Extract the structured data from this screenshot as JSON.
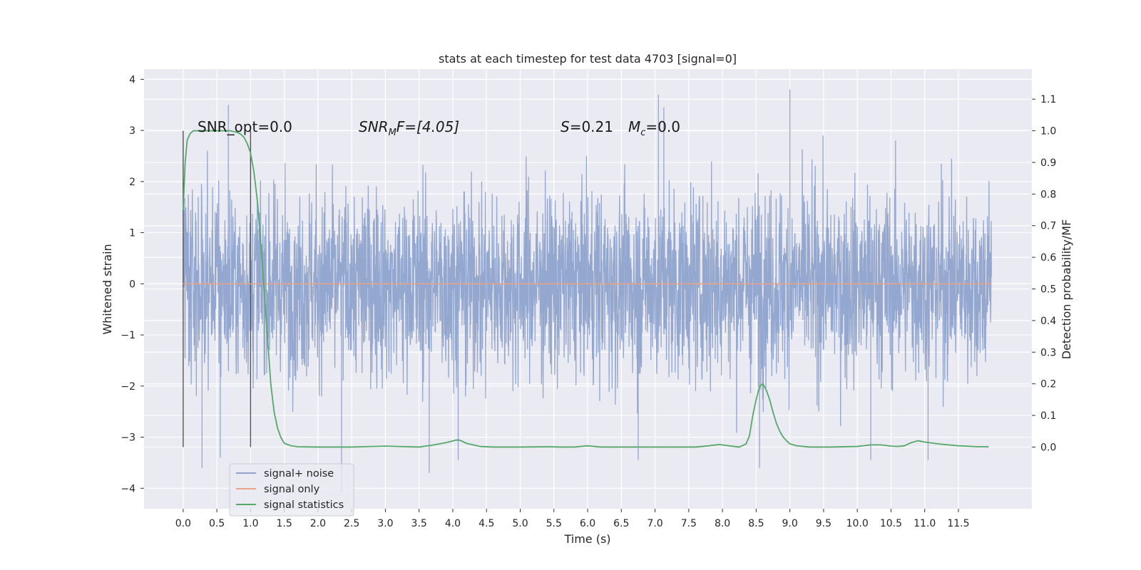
{
  "chart_data": {
    "type": "line",
    "title": "stats at each timestep for test data 4703 [signal=0]",
    "xlabel": "Time (s)",
    "ylabel": "Whitened strain",
    "y2label": "Detection probability/MF",
    "xlim": [
      -0.58,
      12.59
    ],
    "ylim": [
      -4.4,
      4.2
    ],
    "y2lim": [
      -0.195,
      1.195
    ],
    "x_ticks": [
      "0.0",
      "0.5",
      "1.0",
      "1.5",
      "2.0",
      "2.5",
      "3.0",
      "3.5",
      "4.0",
      "4.5",
      "5.0",
      "5.5",
      "6.0",
      "6.5",
      "7.0",
      "7.5",
      "8.0",
      "8.5",
      "9.0",
      "9.5",
      "10.0",
      "10.5",
      "11.0",
      "11.5"
    ],
    "y_ticks": [
      "4",
      "3",
      "2",
      "1",
      "0",
      "−1",
      "−2",
      "−3",
      "−4"
    ],
    "y2_ticks": [
      "1.1",
      "1.0",
      "0.9",
      "0.8",
      "0.7",
      "0.6",
      "0.5",
      "0.4",
      "0.3",
      "0.2",
      "0.1",
      "0.0"
    ],
    "grid": true,
    "legend_position": "lower-left",
    "annotations": {
      "snr_opt": "SNR_opt=0.0",
      "snr_mf_main": "SNR",
      "snr_mf_sub": "M",
      "snr_mf_rest": "F=[4.05]",
      "s_var": "S",
      "s_rest": "=0.21",
      "mc_var": "M",
      "mc_sub": "c",
      "mc_rest": "=0.0"
    },
    "vertical_lines_x": [
      0.0,
      1.0
    ],
    "series": [
      {
        "name": "signal+ noise",
        "color": "#8fa3cc",
        "axis": "left",
        "description_values": "dense noise, t 0.0–11.99 s, typical range -2.3 to 2.3, peaks near ±3.5",
        "x_range": [
          0.0,
          11.99
        ],
        "peaks": [
          [
            0.28,
            -3.6
          ],
          [
            0.55,
            -3.4
          ],
          [
            0.67,
            3.5
          ],
          [
            2.35,
            -4.05
          ],
          [
            3.65,
            -3.7
          ],
          [
            4.08,
            -3.45
          ],
          [
            6.75,
            -3.45
          ],
          [
            7.05,
            3.7
          ],
          [
            7.13,
            3.45
          ],
          [
            8.55,
            -3.6
          ],
          [
            9.0,
            3.8
          ],
          [
            10.2,
            -3.45
          ],
          [
            11.05,
            -3.45
          ]
        ]
      },
      {
        "name": "signal only",
        "color": "#e8a484",
        "axis": "left",
        "x": [
          0.0,
          11.99
        ],
        "y": [
          0.0,
          0.0
        ]
      },
      {
        "name": "signal statistics",
        "color": "#55a868",
        "axis": "right",
        "x": [
          0.0,
          0.03,
          0.06,
          0.1,
          0.15,
          0.2,
          0.3,
          0.5,
          0.7,
          0.8,
          0.85,
          0.9,
          0.95,
          1.0,
          1.05,
          1.1,
          1.15,
          1.2,
          1.25,
          1.3,
          1.35,
          1.4,
          1.45,
          1.5,
          1.6,
          1.7,
          2.0,
          2.5,
          3.0,
          3.5,
          3.7,
          3.9,
          4.05,
          4.1,
          4.2,
          4.4,
          4.6,
          5.0,
          5.4,
          5.6,
          5.8,
          6.0,
          6.2,
          6.5,
          7.0,
          7.4,
          7.6,
          7.8,
          7.95,
          8.1,
          8.25,
          8.35,
          8.4,
          8.45,
          8.5,
          8.55,
          8.6,
          8.65,
          8.7,
          8.75,
          8.8,
          8.85,
          8.9,
          8.95,
          9.0,
          9.1,
          9.3,
          9.6,
          10.0,
          10.2,
          10.35,
          10.5,
          10.6,
          10.7,
          10.8,
          10.9,
          11.0,
          11.2,
          11.5,
          11.8,
          11.95
        ],
        "y": [
          0.75,
          0.9,
          0.97,
          0.99,
          1.0,
          1.0,
          1.0,
          1.0,
          1.0,
          0.995,
          0.99,
          0.98,
          0.96,
          0.93,
          0.87,
          0.78,
          0.65,
          0.5,
          0.35,
          0.2,
          0.11,
          0.06,
          0.03,
          0.012,
          0.004,
          0.001,
          0.0,
          0.0,
          0.003,
          0.0,
          0.006,
          0.014,
          0.022,
          0.022,
          0.012,
          0.002,
          0.0,
          0.0,
          0.001,
          0.0,
          0.0,
          0.004,
          0.0,
          0.0,
          0.0,
          0.0,
          0.0,
          0.004,
          0.008,
          0.004,
          0.0,
          0.01,
          0.035,
          0.1,
          0.15,
          0.192,
          0.2,
          0.18,
          0.15,
          0.11,
          0.075,
          0.05,
          0.032,
          0.02,
          0.01,
          0.004,
          0.0,
          0.0,
          0.002,
          0.007,
          0.007,
          0.003,
          0.002,
          0.004,
          0.014,
          0.02,
          0.016,
          0.01,
          0.004,
          0.001,
          0.001
        ]
      }
    ]
  }
}
